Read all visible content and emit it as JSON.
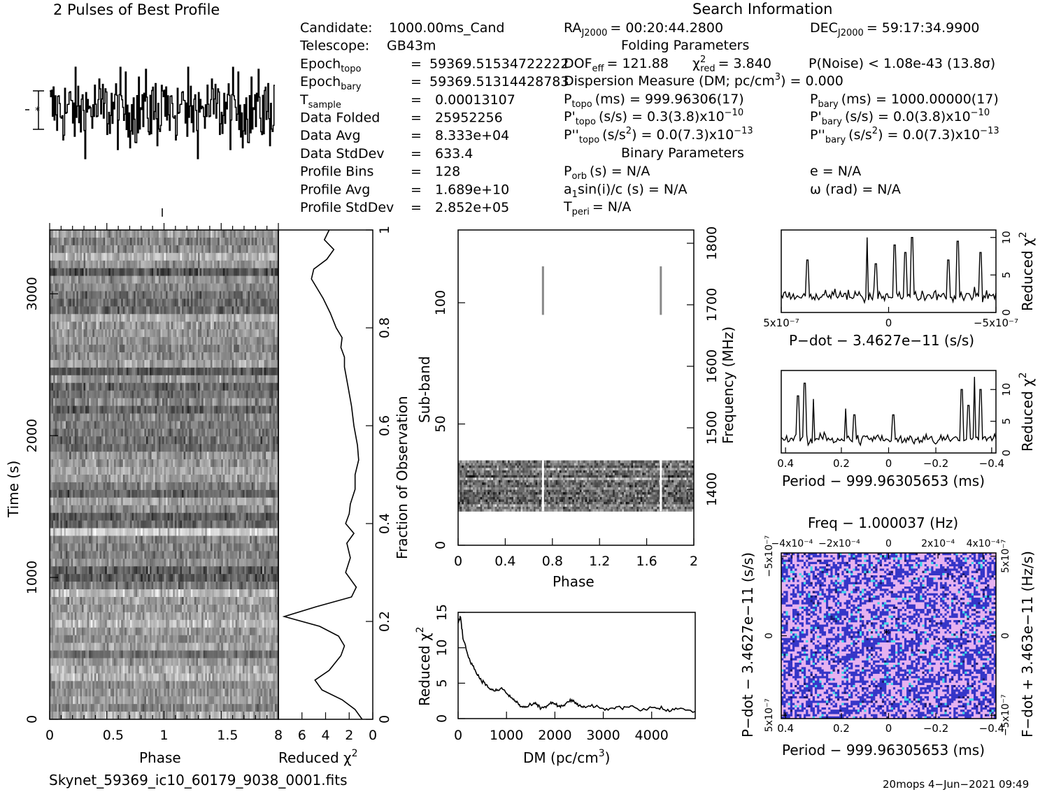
{
  "colors": {
    "ink": "#000000",
    "background": "#ffffff",
    "ppdot_blue": "#3535c8",
    "ppdot_pink": "#e6b2f0",
    "ppdot_cyan": "#40d8e8"
  },
  "header": {
    "profile_title": "2 Pulses of Best Profile",
    "search_title": "Search Information"
  },
  "info": {
    "left": [
      {
        "label": "Candidate:",
        "sub": "",
        "eq": "",
        "value": "1000.00ms_Cand"
      },
      {
        "label": "Telescope:",
        "sub": "",
        "eq": "",
        "value": "GB43m"
      },
      {
        "label": "Epoch",
        "sub": "topo",
        "eq": "=",
        "value": "59369.51534722222"
      },
      {
        "label": "Epoch",
        "sub": "bary",
        "eq": "=",
        "value": "59369.51314428783"
      },
      {
        "label": "T",
        "sub": "sample",
        "eq": "=",
        "value": "0.00013107"
      },
      {
        "label": "Data Folded",
        "sub": "",
        "eq": "=",
        "value": "25952256"
      },
      {
        "label": "Data Avg",
        "sub": "",
        "eq": "=",
        "value": "8.333e+04"
      },
      {
        "label": "Data StdDev",
        "sub": "",
        "eq": "=",
        "value": "633.4"
      },
      {
        "label": "Profile Bins",
        "sub": "",
        "eq": "=",
        "value": "128"
      },
      {
        "label": "Profile Avg",
        "sub": "",
        "eq": "=",
        "value": "1.689e+10"
      },
      {
        "label": "Profile StdDev",
        "sub": "",
        "eq": "=",
        "value": "2.852e+05"
      }
    ],
    "ra": "= 00:20:44.2800",
    "dec": "= 59:17:34.9900",
    "folding_title": "Folding Parameters",
    "dof": "= 121.88",
    "chi2": "= 3.840",
    "pnoise": "P(Noise) < 1.08e-43   (13.8σ)",
    "dm_line": "Dispersion Measure (DM; pc/cm",
    "dm_value": ") = 0.000",
    "ptopo": "(ms) =  999.96306(17)",
    "pbary": "(ms) =  1000.00000(17)",
    "pdtopo": "(s/s) =  0.3(3.8)x10",
    "pdtopo_exp": "−10",
    "pdbary": "(s/s) = 0.0(3.8)x10",
    "pdbary_exp": "−10",
    "pddtopo": "(s/s",
    "pddtopo_val": ") = 0.0(7.3)x10",
    "pddtopo_exp": "−13",
    "pddbary": "(s/s",
    "pddbary_val": ") = 0.0(7.3)x10",
    "pddbary_exp": "−13",
    "binary_title": "Binary Parameters",
    "porb": "(s) = N/A",
    "e": "e = N/A",
    "a1": "sin(i)/c (s) = N/A",
    "omega": "ω (rad) = N/A",
    "tperi": "= N/A"
  },
  "footer": {
    "filename": "Skynet_59369_ic10_60179_9038_0001.fits",
    "stamp": "20mops  4−Jun−2021 09:49"
  },
  "chart_data": [
    {
      "type": "line",
      "name": "profile",
      "title": "2 Pulses of Best Profile",
      "xlabel": "",
      "ylabel": "",
      "note": "noise-like folded profile shown over 2 pulses; no significant peak"
    },
    {
      "type": "heatmap",
      "name": "time-vs-phase",
      "xlabel": "Phase",
      "ylabel": "Time (s)",
      "xlim": [
        0,
        2
      ],
      "ylim": [
        0,
        3450
      ],
      "x_ticks": [
        "0",
        "0.5",
        "1",
        "1.5"
      ],
      "y_ticks": [
        "0",
        "1000",
        "2000",
        "3000"
      ],
      "right_label": "Fraction of Observation",
      "right_ticks": [
        "0",
        "0.2",
        "0.4",
        "0.6",
        "0.8",
        "1"
      ]
    },
    {
      "type": "line",
      "name": "reduced-chi2-vs-time",
      "xlabel": "Reduced χ²",
      "xlim": [
        8,
        0
      ],
      "x_ticks": [
        "8",
        "6",
        "4",
        "2",
        "0"
      ],
      "fraction": [
        0.0,
        0.02,
        0.04,
        0.06,
        0.08,
        0.1,
        0.13,
        0.15,
        0.17,
        0.19,
        0.21,
        0.23,
        0.25,
        0.27,
        0.3,
        0.33,
        0.36,
        0.38,
        0.4,
        0.42,
        0.44,
        0.47,
        0.5,
        0.53,
        0.56,
        0.6,
        0.64,
        0.68,
        0.72,
        0.74,
        0.76,
        0.78,
        0.8,
        0.83,
        0.86,
        0.88,
        0.9,
        0.92,
        0.94,
        0.96,
        0.98,
        1.0
      ],
      "values": [
        0.9,
        1.5,
        2.6,
        4.3,
        4.9,
        3.7,
        2.7,
        2.4,
        2.9,
        4.5,
        7.5,
        4.8,
        1.8,
        1.4,
        2.3,
        1.9,
        2.2,
        1.6,
        2.3,
        2.0,
        1.9,
        1.5,
        1.5,
        1.2,
        1.3,
        1.6,
        1.8,
        2.1,
        2.4,
        2.4,
        2.7,
        2.6,
        3.1,
        3.6,
        4.2,
        4.7,
        5.2,
        5.0,
        3.9,
        3.3,
        4.1,
        3.7
      ]
    },
    {
      "type": "heatmap",
      "name": "subband-vs-phase",
      "xlabel": "Phase",
      "ylabel": "Sub-band",
      "xlim": [
        0,
        2
      ],
      "ylim": [
        0,
        130
      ],
      "x_ticks": [
        "0",
        "0.4",
        "0.8",
        "1.2",
        "1.6",
        "2"
      ],
      "y_ticks": [
        "0",
        "50",
        "100"
      ],
      "right_label": "Frequency (MHz)",
      "right_ticks": [
        "1400",
        "1500",
        "1600",
        "1700",
        "1800"
      ],
      "active_subbands": [
        14,
        35
      ],
      "notable_phases": [
        0.72,
        1.72
      ]
    },
    {
      "type": "line",
      "name": "dm-curve",
      "xlabel": "DM (pc/cm³)",
      "ylabel": "Reduced χ²",
      "xlim": [
        0,
        4900
      ],
      "ylim": [
        0,
        15
      ],
      "x_ticks": [
        "0",
        "1000",
        "2000",
        "3000",
        "4000"
      ],
      "y_ticks": [
        "0",
        "5",
        "10",
        "15"
      ],
      "x": [
        0,
        50,
        100,
        200,
        300,
        400,
        500,
        600,
        700,
        800,
        900,
        1000,
        1100,
        1200,
        1300,
        1400,
        1500,
        1600,
        1700,
        1800,
        1900,
        2000,
        2100,
        2200,
        2300,
        2400,
        2500,
        2600,
        2800,
        3000,
        3200,
        3400,
        3600,
        3800,
        4000,
        4200,
        4400,
        4600,
        4900
      ],
      "y": [
        13.5,
        14.3,
        11.5,
        9.0,
        7.5,
        6.2,
        5.3,
        4.6,
        4.0,
        3.9,
        4.3,
        3.6,
        2.9,
        2.4,
        1.7,
        1.6,
        1.9,
        2.1,
        1.5,
        1.6,
        2.2,
        2.1,
        1.6,
        1.9,
        2.6,
        2.3,
        1.9,
        1.5,
        1.8,
        1.3,
        1.5,
        1.6,
        1.8,
        1.2,
        1.6,
        1.4,
        1.1,
        1.5,
        1.0
      ]
    },
    {
      "type": "line",
      "name": "pdot-chi2",
      "xlabel": "P−dot − 3.4627e−11 (s/s)",
      "ylabel": "Reduced χ²",
      "x_ticks": [
        "5x10⁻⁷",
        "0",
        "−5x10⁻⁷"
      ],
      "y_ticks": [
        "0",
        "5",
        "10"
      ],
      "ylim": [
        0,
        11
      ]
    },
    {
      "type": "line",
      "name": "period-chi2",
      "xlabel": "Period − 999.96305653 (ms)",
      "ylabel": "Reduced χ²",
      "x_ticks": [
        "0.4",
        "0.2",
        "0",
        "−0.2",
        "−0.4"
      ],
      "y_ticks": [
        "0",
        "5",
        "10"
      ],
      "ylim": [
        0,
        13
      ]
    },
    {
      "type": "heatmap",
      "name": "p-pdot-plane",
      "title": "Freq − 1.000037 (Hz)",
      "xlabel": "Period − 999.96305653 (ms)",
      "ylabel": "P−dot − 3.4627e−11 (s/s)",
      "right_label": "F−dot + 3.463e−11 (Hz/s)",
      "x_ticks": [
        "0.4",
        "0.2",
        "0",
        "−0.2",
        "−0.4"
      ],
      "top_ticks": [
        "−4x10⁻⁴",
        "−2x10⁻⁴",
        "0",
        "2x10⁻⁴",
        "4x10⁻⁴"
      ],
      "y_ticks": [
        "5x10⁻⁷",
        "0",
        "−5x10⁻⁷"
      ],
      "right_ticks": [
        "−5x10⁻⁷",
        "0",
        "5x10⁻⁷"
      ]
    }
  ]
}
